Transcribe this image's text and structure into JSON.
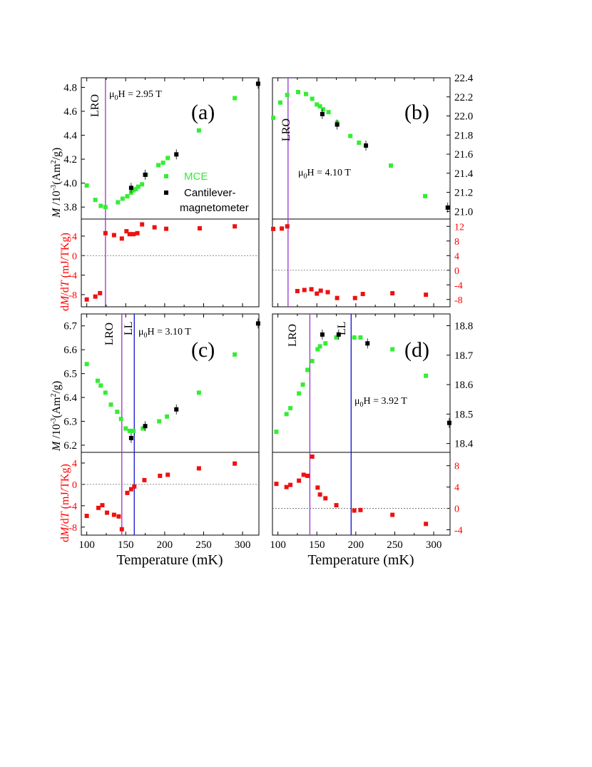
{
  "figure": {
    "x_axis_label": "Temperature (mK)",
    "x_ticks": [
      "100",
      "150",
      "200",
      "250",
      "300"
    ],
    "left_y_label_main": "M",
    "left_y_label_unit": " /10",
    "left_y_label_exp": "-3",
    "left_y_label_rest": "(Am",
    "left_y_label_sq": "2",
    "left_y_label_end": "/g)",
    "bottom_y_label_d": "d",
    "bottom_y_label_M": "M",
    "bottom_y_label_slash": "/d",
    "bottom_y_label_T": "T",
    "bottom_y_label_unit": " (mJ/TKg)",
    "legend": {
      "mce": "MCE",
      "cantilever_line1": "Cantilever-",
      "cantilever_line2": "magnetometer"
    },
    "colors": {
      "mce": "#33ee33",
      "cantilever": "#000000",
      "dmdt": "#ee1111",
      "lro": "#9933cc",
      "ll": "#1111cc"
    }
  },
  "chart_data": [
    {
      "id": "a",
      "panel_label": "(a)",
      "type": "scatter",
      "field_mu": "μ",
      "field_sub": "0",
      "field_rest": "H = 2.95 T",
      "xlim": [
        93,
        321
      ],
      "top": {
        "ylim": [
          3.7,
          4.88
        ],
        "ticks": [
          "3.8",
          "4.0",
          "4.2",
          "4.4",
          "4.6",
          "4.8"
        ],
        "tick_values": [
          3.8,
          4.0,
          4.2,
          4.4,
          4.6,
          4.8
        ],
        "side": "left",
        "mce": [
          [
            100,
            3.98
          ],
          [
            111,
            3.86
          ],
          [
            118,
            3.81
          ],
          [
            124,
            3.8
          ],
          [
            140,
            3.84
          ],
          [
            146,
            3.87
          ],
          [
            152,
            3.89
          ],
          [
            157,
            3.92
          ],
          [
            160,
            3.94
          ],
          [
            163,
            3.95
          ],
          [
            166,
            3.97
          ],
          [
            171,
            3.99
          ],
          [
            176,
            4.07
          ],
          [
            192,
            4.15
          ],
          [
            198,
            4.17
          ],
          [
            204,
            4.21
          ],
          [
            244,
            4.44
          ],
          [
            290,
            4.71
          ]
        ],
        "cantilever": [
          [
            157,
            3.96
          ],
          [
            175,
            4.07
          ],
          [
            215,
            4.24
          ],
          [
            320,
            4.83
          ]
        ]
      },
      "bottom": {
        "ylim": [
          -10.5,
          7.5
        ],
        "ticks": [
          "-8",
          "-4",
          "0",
          "4"
        ],
        "tick_values": [
          -8,
          -4,
          0,
          4
        ],
        "side": "left",
        "dmdt": [
          [
            100,
            -9
          ],
          [
            111,
            -8.4
          ],
          [
            117,
            -7.7
          ],
          [
            124,
            4.6
          ],
          [
            135,
            4.2
          ],
          [
            145,
            3.5
          ],
          [
            151,
            5.0
          ],
          [
            155,
            4.4
          ],
          [
            160,
            4.4
          ],
          [
            165,
            4.6
          ],
          [
            171,
            6.4
          ],
          [
            187,
            5.8
          ],
          [
            202,
            5.5
          ],
          [
            245,
            5.6
          ],
          [
            290,
            6.0
          ]
        ]
      },
      "lro_line": 124,
      "ll_line": null
    },
    {
      "id": "b",
      "panel_label": "(b)",
      "type": "scatter",
      "field_mu": "μ",
      "field_sub": "0",
      "field_rest": "H = 4.10 T",
      "xlim": [
        93,
        321
      ],
      "top": {
        "ylim": [
          20.92,
          22.4
        ],
        "ticks": [
          "21.0",
          "21.2",
          "21.4",
          "21.6",
          "21.8",
          "22.0",
          "22.2",
          "22.4"
        ],
        "tick_values": [
          21.0,
          21.2,
          21.4,
          21.6,
          21.8,
          22.0,
          22.2,
          22.4
        ],
        "side": "right",
        "mce": [
          [
            94,
            21.98
          ],
          [
            103,
            22.14
          ],
          [
            112,
            22.22
          ],
          [
            126,
            22.25
          ],
          [
            136,
            22.23
          ],
          [
            144,
            22.18
          ],
          [
            150,
            22.12
          ],
          [
            154,
            22.1
          ],
          [
            158,
            22.07
          ],
          [
            165,
            22.04
          ],
          [
            176,
            21.93
          ],
          [
            193,
            21.79
          ],
          [
            204,
            21.72
          ],
          [
            245,
            21.48
          ],
          [
            289,
            21.16
          ]
        ],
        "cantilever": [
          [
            157,
            22.02
          ],
          [
            176,
            21.91
          ],
          [
            213,
            21.69
          ],
          [
            318,
            21.04
          ]
        ]
      },
      "bottom": {
        "ylim": [
          -10.0,
          14.0
        ],
        "ticks": [
          "-8",
          "-4",
          "0",
          "4",
          "8",
          "12"
        ],
        "tick_values": [
          -8,
          -4,
          0,
          4,
          8,
          12
        ],
        "side": "right",
        "dmdt": [
          [
            94,
            11.3
          ],
          [
            105,
            11.4
          ],
          [
            112,
            12.0
          ],
          [
            125,
            -5.7
          ],
          [
            134,
            -5.4
          ],
          [
            143,
            -5.2
          ],
          [
            150,
            -6.4
          ],
          [
            155,
            -5.6
          ],
          [
            164,
            -6.0
          ],
          [
            176,
            -7.6
          ],
          [
            199,
            -7.6
          ],
          [
            209,
            -6.5
          ],
          [
            247,
            -6.3
          ],
          [
            290,
            -6.7
          ]
        ]
      },
      "lro_line": 113,
      "ll_line": null
    },
    {
      "id": "c",
      "panel_label": "(c)",
      "type": "scatter",
      "field_mu": "μ",
      "field_sub": "0",
      "field_rest": "H = 3.10 T",
      "xlim": [
        93,
        321
      ],
      "top": {
        "ylim": [
          6.17,
          6.75
        ],
        "ticks": [
          "6.2",
          "6.3",
          "6.4",
          "6.5",
          "6.6",
          "6.7"
        ],
        "tick_values": [
          6.2,
          6.3,
          6.4,
          6.5,
          6.6,
          6.7
        ],
        "side": "left",
        "mce": [
          [
            100,
            6.54
          ],
          [
            114,
            6.47
          ],
          [
            118,
            6.45
          ],
          [
            124,
            6.42
          ],
          [
            131,
            6.37
          ],
          [
            139,
            6.34
          ],
          [
            144,
            6.31
          ],
          [
            150,
            6.27
          ],
          [
            155,
            6.26
          ],
          [
            160,
            6.26
          ],
          [
            172,
            6.27
          ],
          [
            193,
            6.3
          ],
          [
            203,
            6.32
          ],
          [
            244,
            6.42
          ],
          [
            290,
            6.58
          ]
        ],
        "cantilever": [
          [
            157,
            6.23
          ],
          [
            175,
            6.28
          ],
          [
            215,
            6.35
          ],
          [
            320,
            6.71
          ]
        ]
      },
      "bottom": {
        "ylim": [
          -9.5,
          6.0
        ],
        "ticks": [
          "-8",
          "-4",
          "0",
          "4"
        ],
        "tick_values": [
          -8,
          -4,
          0,
          4
        ],
        "side": "left",
        "dmdt": [
          [
            100,
            -5.9
          ],
          [
            115,
            -4.4
          ],
          [
            120,
            -3.9
          ],
          [
            126,
            -5.3
          ],
          [
            135,
            -5.7
          ],
          [
            141,
            -6.0
          ],
          [
            145,
            -8.4
          ],
          [
            152,
            -1.6
          ],
          [
            157,
            -0.9
          ],
          [
            161,
            -0.4
          ],
          [
            174,
            0.8
          ],
          [
            194,
            1.6
          ],
          [
            204,
            1.8
          ],
          [
            244,
            3.0
          ],
          [
            290,
            3.9
          ]
        ]
      },
      "lro_line": 145,
      "ll_line": 161
    },
    {
      "id": "d",
      "panel_label": "(d)",
      "type": "scatter",
      "field_mu": "μ",
      "field_sub": "0",
      "field_rest": "H = 3.92 T",
      "xlim": [
        93,
        321
      ],
      "top": {
        "ylim": [
          18.37,
          18.84
        ],
        "ticks": [
          "18.4",
          "18.5",
          "18.6",
          "18.7",
          "18.8"
        ],
        "tick_values": [
          18.4,
          18.5,
          18.6,
          18.7,
          18.8
        ],
        "side": "right",
        "mce": [
          [
            98,
            18.44
          ],
          [
            111,
            18.5
          ],
          [
            116,
            18.52
          ],
          [
            127,
            18.57
          ],
          [
            132,
            18.6
          ],
          [
            138,
            18.65
          ],
          [
            144,
            18.68
          ],
          [
            151,
            18.72
          ],
          [
            154,
            18.73
          ],
          [
            161,
            18.74
          ],
          [
            175,
            18.76
          ],
          [
            198,
            18.76
          ],
          [
            206,
            18.76
          ],
          [
            247,
            18.72
          ],
          [
            290,
            18.63
          ]
        ],
        "cantilever": [
          [
            157,
            18.77
          ],
          [
            178,
            18.77
          ],
          [
            215,
            18.74
          ],
          [
            320,
            18.47
          ]
        ]
      },
      "bottom": {
        "ylim": [
          -5.0,
          10.5
        ],
        "ticks": [
          "-4",
          "0",
          "4",
          "8"
        ],
        "tick_values": [
          -4,
          0,
          4,
          8
        ],
        "side": "right",
        "dmdt": [
          [
            98,
            4.6
          ],
          [
            111,
            4.0
          ],
          [
            116,
            4.4
          ],
          [
            127,
            5.2
          ],
          [
            133,
            6.3
          ],
          [
            138,
            6.1
          ],
          [
            144,
            9.7
          ],
          [
            151,
            3.9
          ],
          [
            154,
            2.6
          ],
          [
            161,
            1.9
          ],
          [
            175,
            0.6
          ],
          [
            198,
            -0.4
          ],
          [
            206,
            -0.3
          ],
          [
            247,
            -1.2
          ],
          [
            290,
            -2.9
          ]
        ]
      },
      "lro_line": 141,
      "ll_line": 194
    }
  ]
}
